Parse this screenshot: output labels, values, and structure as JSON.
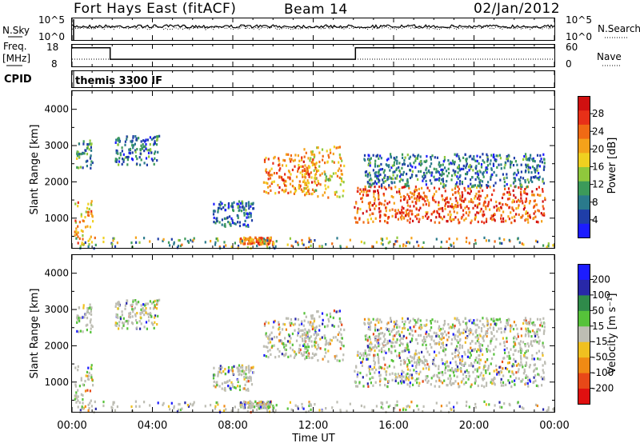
{
  "header": {
    "station": "Fort Hays East (fitACF)",
    "beam": "Beam 14",
    "date": "02/Jan/2012"
  },
  "noise_panel": {
    "left_label": "N.Sky",
    "right_label": "N.Search",
    "left_ticks": [
      "10^5",
      "10^0"
    ],
    "right_ticks": [
      "10^5",
      "10^0"
    ]
  },
  "freq_panel": {
    "left_label_1": "Freq.",
    "left_label_2": "[MHz]",
    "left_ticks": [
      "18",
      "8"
    ],
    "right_label": "Nave",
    "right_ticks": [
      "60",
      "0"
    ],
    "freq_mhz_steps": [
      {
        "from_h": 0.0,
        "to_h": 1.9,
        "value": 16.6
      },
      {
        "from_h": 1.9,
        "to_h": 14.1,
        "value": 11.3
      },
      {
        "from_h": 14.1,
        "to_h": 24.0,
        "value": 16.6
      }
    ]
  },
  "cpid_panel": {
    "label": "CPID",
    "program": "themis 3300 IF"
  },
  "power_panel": {
    "ylabel": "Slant Range [km]",
    "yticks": [
      "1000",
      "2000",
      "3000",
      "4000"
    ],
    "colorbar_label": "Power [dB]",
    "colorbar_ticks": [
      "4",
      "8",
      "12",
      "16",
      "20",
      "24",
      "28"
    ],
    "colors": [
      "#1c1cff",
      "#1f3ea8",
      "#2a7a8c",
      "#3c9a5a",
      "#8fc83c",
      "#f0d020",
      "#f4a21a",
      "#f06a14",
      "#e83018",
      "#d01010"
    ]
  },
  "velocity_panel": {
    "ylabel": "Slant Range [km]",
    "yticks": [
      "1000",
      "2000",
      "3000",
      "4000"
    ],
    "colorbar_label": "Velocity [m s⁻¹]",
    "colorbar_ticks": [
      "200",
      "100",
      "50",
      "15",
      "-15",
      "-50",
      "-100",
      "-200"
    ],
    "colors": [
      "#1c1cff",
      "#2828a8",
      "#2f8a4a",
      "#56c23a",
      "#bdbdb3",
      "#f0c020",
      "#f08a14",
      "#e84818",
      "#e01010"
    ]
  },
  "x_axis": {
    "label": "Time UT",
    "ticks": [
      "00:00",
      "04:00",
      "08:00",
      "12:00",
      "16:00",
      "20:00",
      "00:00"
    ]
  },
  "chart_data": {
    "type": "heatmap",
    "x_range_hours": [
      0,
      24
    ],
    "y_range_km": [
      180,
      4500
    ],
    "power_echo_bands": [
      {
        "start_h": 0.1,
        "end_h": 1.0,
        "range_km": [
          300,
          1500
        ],
        "power_db": 22
      },
      {
        "start_h": 0.2,
        "end_h": 1.0,
        "range_km": [
          2400,
          3200
        ],
        "power_db": 12
      },
      {
        "start_h": 2.1,
        "end_h": 4.3,
        "range_km": [
          2500,
          3300
        ],
        "power_db": 10
      },
      {
        "start_h": 7.0,
        "end_h": 9.0,
        "range_km": [
          800,
          1500
        ],
        "power_db": 9
      },
      {
        "start_h": 8.3,
        "end_h": 10.0,
        "range_km": [
          300,
          500
        ],
        "power_db": 24
      },
      {
        "start_h": 9.5,
        "end_h": 12.2,
        "range_km": [
          1700,
          2800
        ],
        "power_db": 24
      },
      {
        "start_h": 11.5,
        "end_h": 13.5,
        "range_km": [
          1600,
          3000
        ],
        "power_db": 20
      },
      {
        "start_h": 14.0,
        "end_h": 23.5,
        "range_km": [
          900,
          1900
        ],
        "power_db": 26
      },
      {
        "start_h": 14.5,
        "end_h": 23.5,
        "range_km": [
          1900,
          2800
        ],
        "power_db": 10
      }
    ]
  }
}
